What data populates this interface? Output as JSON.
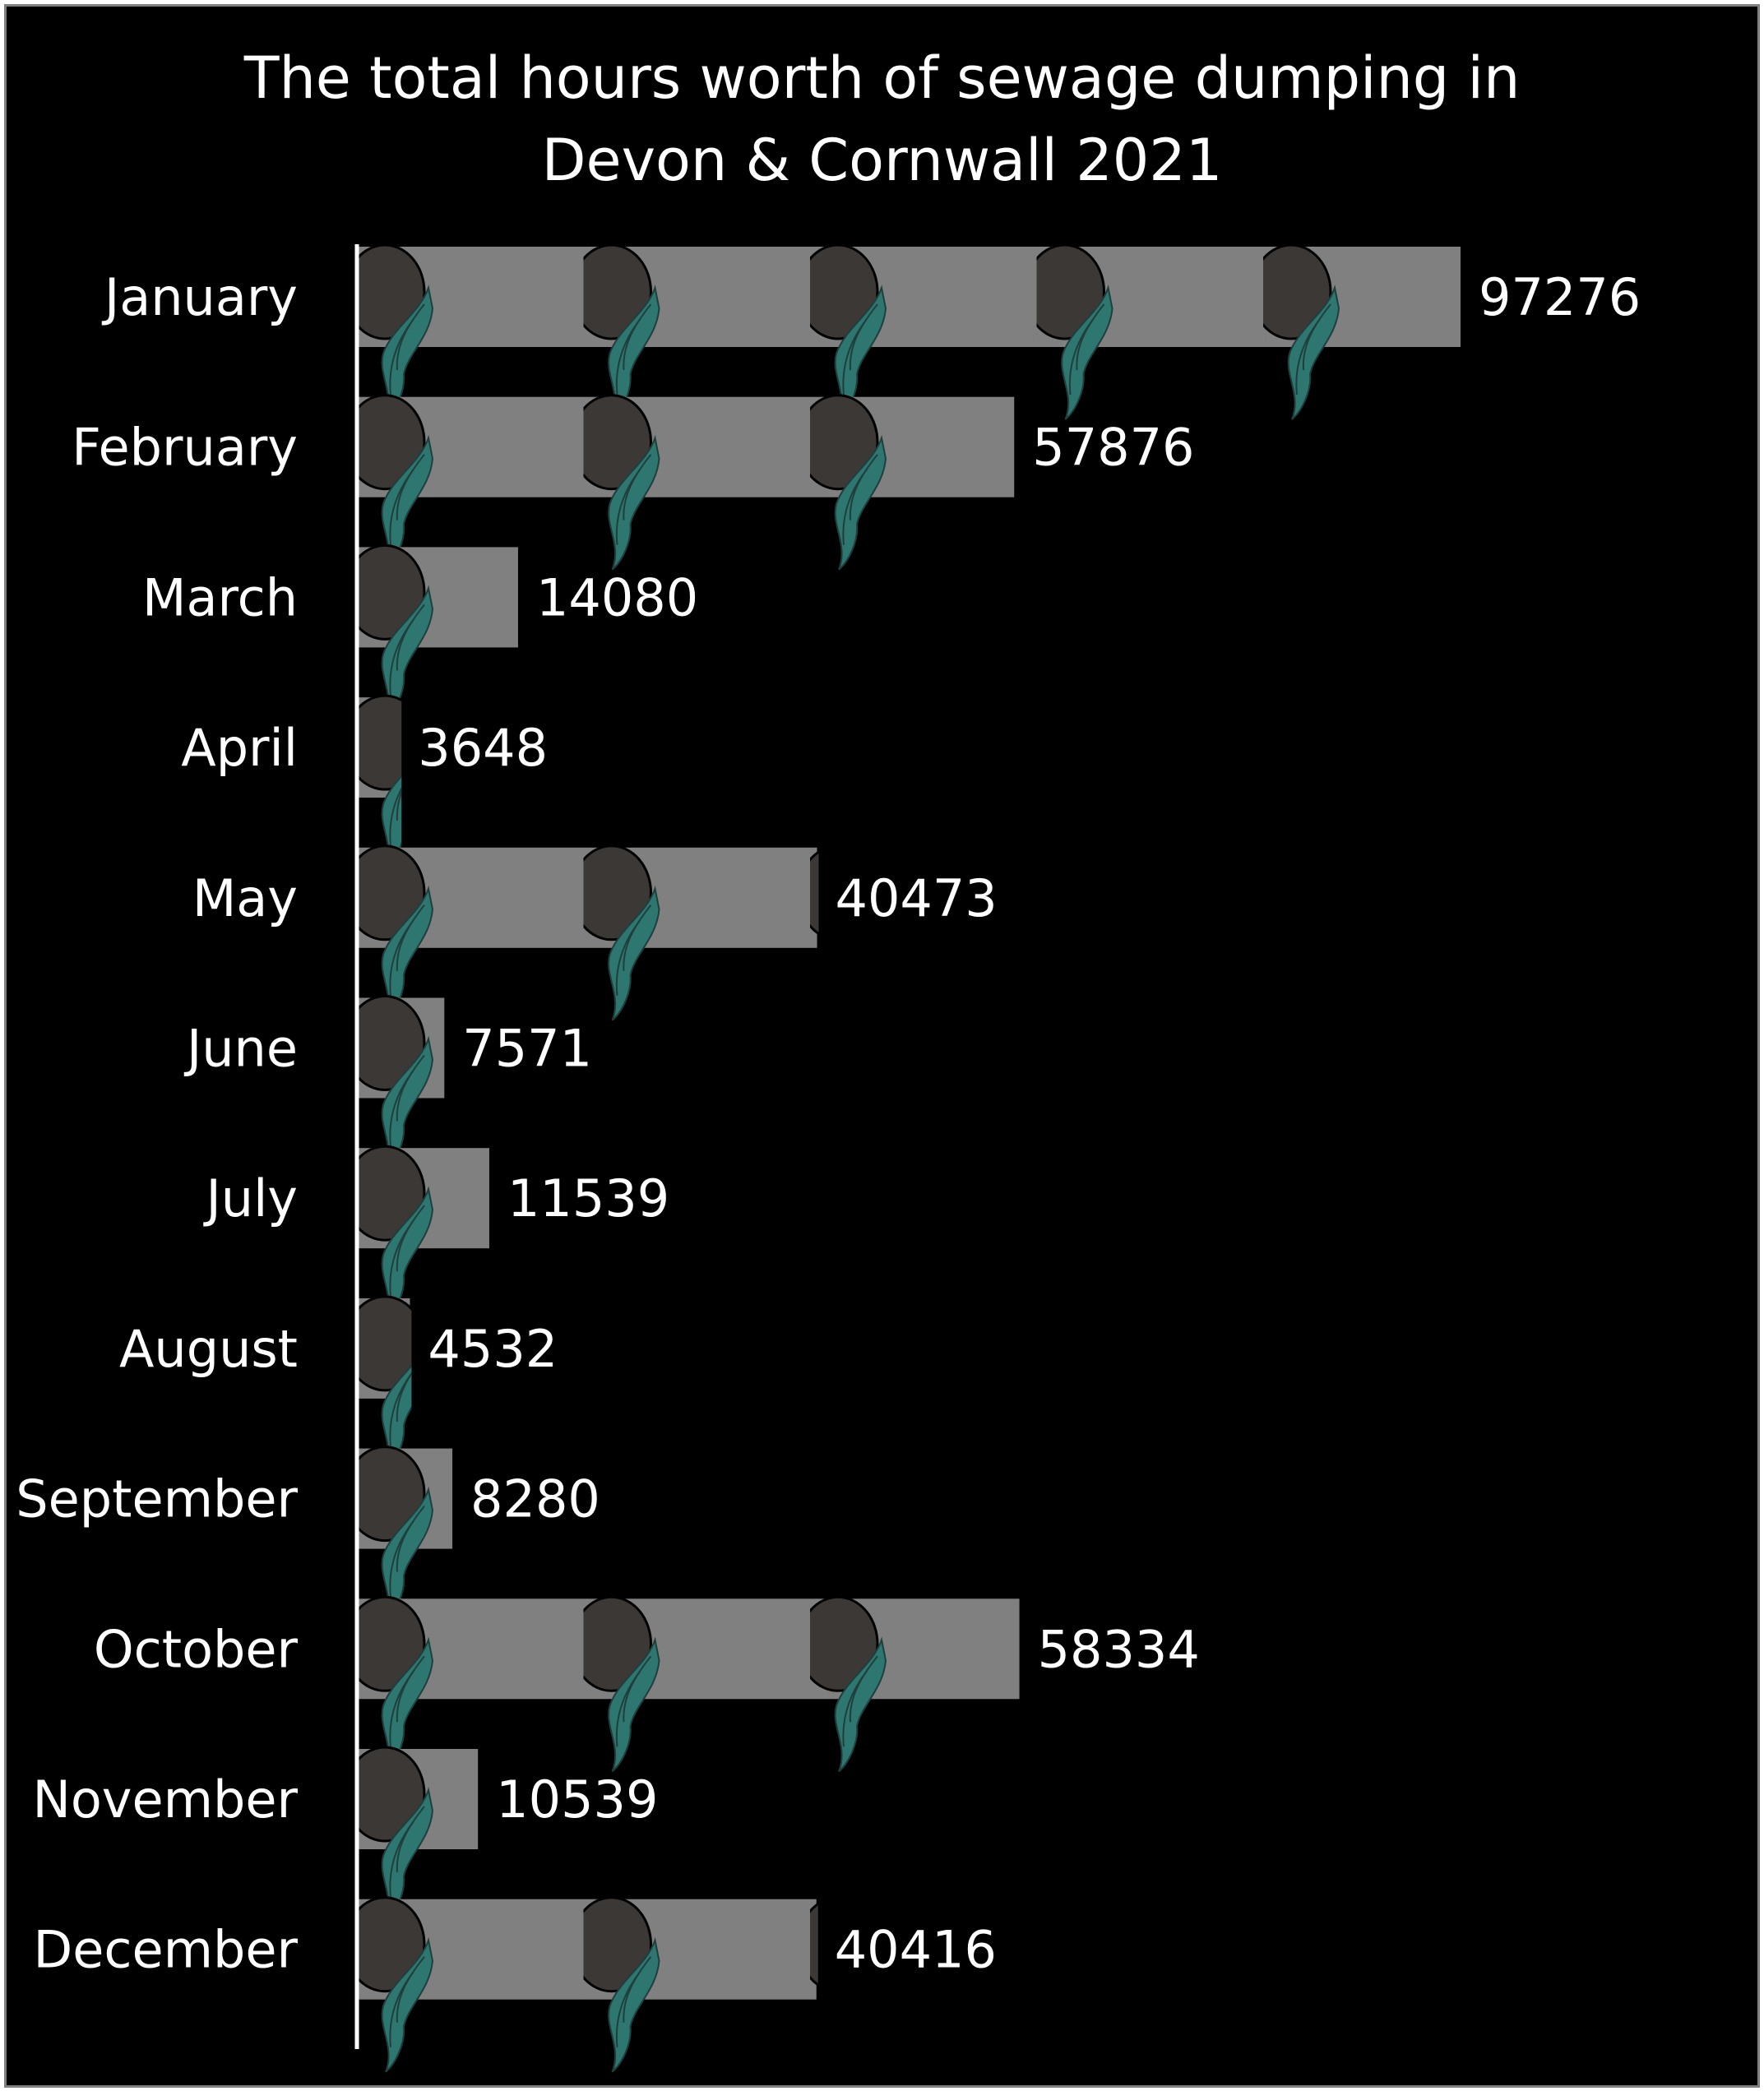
{
  "chart_data": {
    "type": "bar",
    "orientation": "horizontal",
    "title": "The total hours worth of sewage dumping in\nDevon & Cornwall 2021",
    "categories": [
      "January",
      "February",
      "March",
      "April",
      "May",
      "June",
      "July",
      "August",
      "September",
      "October",
      "November",
      "December"
    ],
    "values": [
      97276,
      57876,
      14080,
      3648,
      40473,
      7571,
      11539,
      4532,
      8280,
      58334,
      10539,
      40416
    ],
    "data_labels": [
      "97276",
      "57876",
      "14080",
      "3648",
      "40473",
      "7571",
      "11539",
      "4532",
      "8280",
      "58334",
      "10539",
      "40416"
    ],
    "xlim": [
      0,
      112000
    ],
    "pictograph_unit": 20000,
    "grid": false,
    "legend": "none",
    "colors": {
      "background": "#000000",
      "frame": "#7f7f7f",
      "text": "#ffffff",
      "axis": "#ffffff",
      "pipe_body": "#808080",
      "pipe_mouth": "#3b3836",
      "sewage_flow": "#2e7770",
      "sewage_outline": "#1f3f3c"
    },
    "icon": "sewage-pipe-icon"
  }
}
